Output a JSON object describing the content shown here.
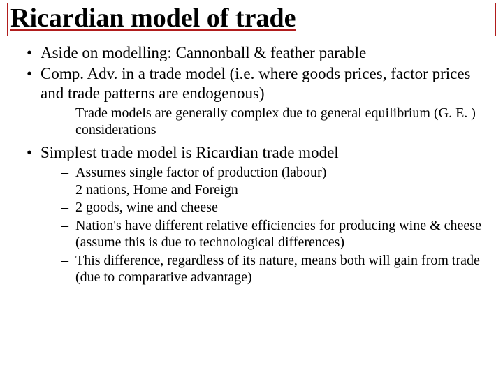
{
  "title_fontsize": 38,
  "body_fontsize": 23,
  "sub_fontsize": 20,
  "colors": {
    "title_border": "#b11d1d",
    "title_underline": "#b11d1d",
    "text": "#000000",
    "background": "#ffffff"
  },
  "title": "Ricardian model of trade",
  "bullets": [
    {
      "text": "Aside on modelling: Cannonball & feather parable",
      "children": []
    },
    {
      "text": "Comp. Adv. in a trade model (i.e. where goods prices, factor prices and trade patterns are endogenous)",
      "children": [
        "Trade models are generally complex due to general equilibrium (G. E. ) considerations"
      ]
    },
    {
      "text": "Simplest trade model is Ricardian trade model",
      "children": [
        "Assumes single factor of production (labour)",
        "2 nations, Home and Foreign",
        "2 goods, wine and cheese",
        "Nation's have different relative efficiencies for producing wine & cheese (assume this is due to technological differences)",
        "This difference, regardless of its nature, means both will gain from trade (due to comparative advantage)"
      ]
    }
  ]
}
